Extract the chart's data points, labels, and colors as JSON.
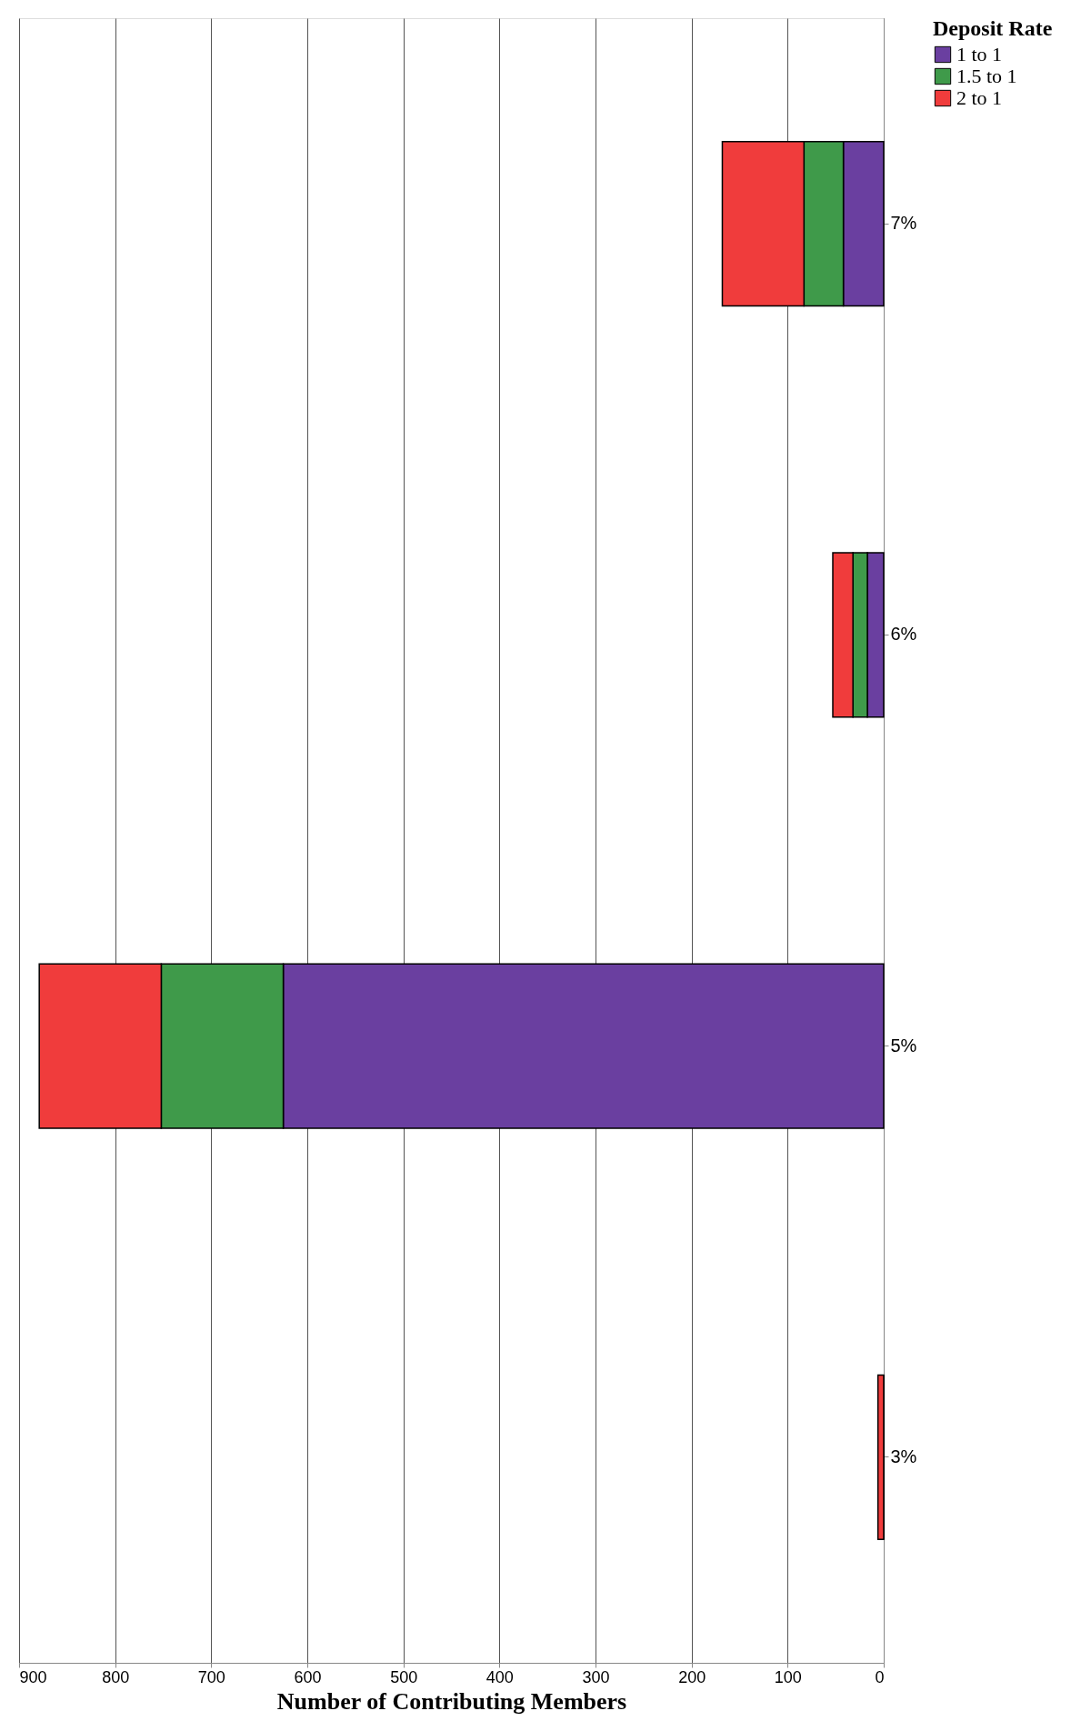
{
  "chart_data": {
    "type": "bar",
    "orientation": "horizontal",
    "stacked": true,
    "categories": [
      "7%",
      "6%",
      "5%",
      "3%"
    ],
    "series": [
      {
        "name": "1 to 1",
        "color": "#6a3fa0",
        "values": [
          42,
          17,
          625,
          0
        ]
      },
      {
        "name": "1.5 to 1",
        "color": "#3f9a4a",
        "values": [
          41,
          15,
          127,
          0
        ]
      },
      {
        "name": "2 to 1",
        "color": "#f03c3c",
        "values": [
          85,
          21,
          127,
          6
        ]
      }
    ],
    "xlabel": "Number of Contributing Members",
    "legend_title": "Deposit Rate",
    "xlim": [
      900,
      0
    ],
    "xticks": [
      900,
      800,
      700,
      600,
      500,
      400,
      300,
      200,
      100,
      0
    ],
    "grid": "x",
    "legend": "right"
  }
}
